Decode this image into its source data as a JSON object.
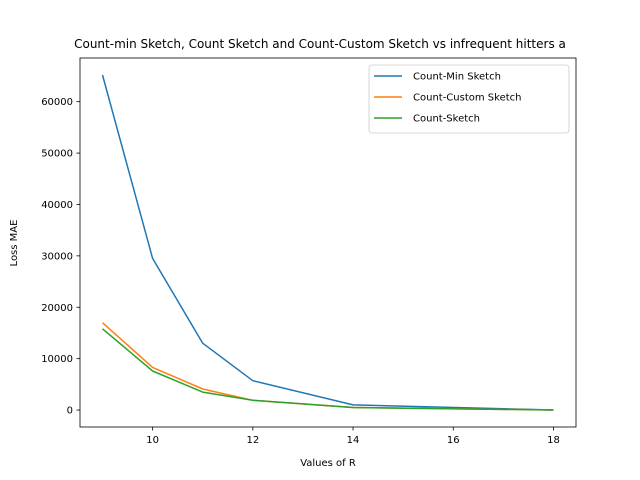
{
  "chart_data": {
    "type": "line",
    "title": "Count-min Sketch, Count Sketch and Count-Custom Sketch vs infrequent hitters a",
    "xlabel": "Values of R",
    "ylabel": "Loss MAE",
    "x": [
      9,
      10,
      11,
      12,
      14,
      18
    ],
    "xlim": [
      8.55,
      18.45
    ],
    "ylim": [
      -3300,
      68500
    ],
    "xticks": [
      10,
      12,
      14,
      16,
      18
    ],
    "yticks": [
      0,
      10000,
      20000,
      30000,
      40000,
      50000,
      60000
    ],
    "grid": false,
    "legend_position": "top-right",
    "series": [
      {
        "name": "Count-Min Sketch",
        "color": "#1f77b4",
        "values": [
          65200,
          29500,
          13000,
          5700,
          1000,
          0
        ]
      },
      {
        "name": "Count-Custom Sketch",
        "color": "#ff7f0e",
        "values": [
          17000,
          8300,
          4100,
          1900,
          500,
          0
        ]
      },
      {
        "name": "Count-Sketch",
        "color": "#2ca02c",
        "values": [
          15800,
          7600,
          3500,
          1900,
          500,
          0
        ]
      }
    ]
  }
}
